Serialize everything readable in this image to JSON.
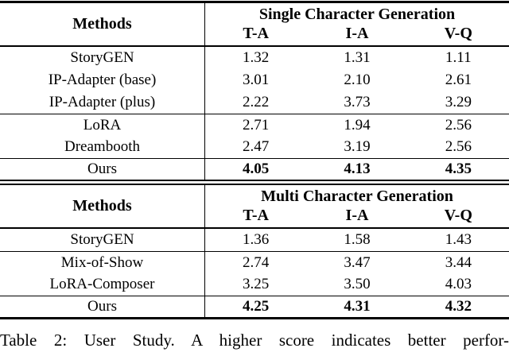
{
  "page": {
    "background": "#ffffff",
    "text_color": "#000000",
    "rule_color": "#000000",
    "caption": "Table 2: User Study. A higher score indicates better perfor-"
  },
  "tables": [
    {
      "name": "single-character-generation",
      "methods_header": "Methods",
      "group_header": "Single Character Generation",
      "columns": [
        "T-A",
        "I-A",
        "V-Q"
      ],
      "rows": [
        {
          "method": "StoryGEN",
          "values": [
            "1.32",
            "1.31",
            "1.11"
          ]
        },
        {
          "method": "IP-Adapter (base)",
          "values": [
            "3.01",
            "2.10",
            "2.61"
          ]
        },
        {
          "method": "IP-Adapter (plus)",
          "values": [
            "2.22",
            "3.73",
            "3.29"
          ]
        },
        {
          "method": "LoRA",
          "values": [
            "2.71",
            "1.94",
            "2.56"
          ]
        },
        {
          "method": "Dreambooth",
          "values": [
            "2.47",
            "3.19",
            "2.56"
          ]
        },
        {
          "method": "Ours",
          "values": [
            "4.05",
            "4.13",
            "4.35"
          ]
        }
      ]
    },
    {
      "name": "multi-character-generation",
      "methods_header": "Methods",
      "group_header": "Multi Character Generation",
      "columns": [
        "T-A",
        "I-A",
        "V-Q"
      ],
      "rows": [
        {
          "method": "StoryGEN",
          "values": [
            "1.36",
            "1.58",
            "1.43"
          ]
        },
        {
          "method": "Mix-of-Show",
          "values": [
            "2.74",
            "3.47",
            "3.44"
          ]
        },
        {
          "method": "LoRA-Composer",
          "values": [
            "3.25",
            "3.50",
            "4.03"
          ]
        },
        {
          "method": "Ours",
          "values": [
            "4.25",
            "4.31",
            "4.32"
          ]
        }
      ]
    }
  ]
}
